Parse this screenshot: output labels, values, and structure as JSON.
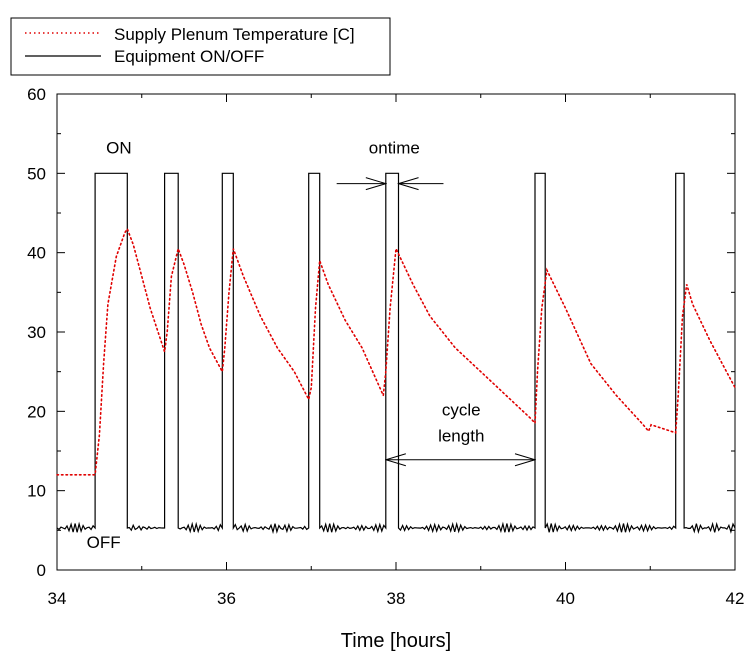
{
  "chart_data": {
    "type": "line",
    "title": "",
    "xlabel": "Time [hours]",
    "ylabel": "",
    "xlim": [
      34,
      42
    ],
    "ylim": [
      0,
      60
    ],
    "xticks": [
      34,
      36,
      38,
      40,
      42
    ],
    "yticks": [
      0,
      10,
      20,
      30,
      40,
      50,
      60
    ],
    "grid": false,
    "legend_position": "top-left-outside",
    "series": [
      {
        "name": "Supply Plenum Temperature [C]",
        "color": "#e00000",
        "style": "dotted",
        "x": [
          34.0,
          34.45,
          34.5,
          34.55,
          34.6,
          34.7,
          34.8,
          34.83,
          34.9,
          35.0,
          35.1,
          35.27,
          35.3,
          35.35,
          35.43,
          35.5,
          35.6,
          35.7,
          35.8,
          35.95,
          35.98,
          36.03,
          36.08,
          36.2,
          36.4,
          36.6,
          36.8,
          36.97,
          37.0,
          37.05,
          37.1,
          37.2,
          37.4,
          37.6,
          37.85,
          37.88,
          37.93,
          38.0,
          38.2,
          38.4,
          38.7,
          39.0,
          39.3,
          39.6,
          39.64,
          39.67,
          39.72,
          39.78,
          40.0,
          40.3,
          40.6,
          40.9,
          40.98,
          41.01,
          41.3,
          41.33,
          41.38,
          41.43,
          41.5,
          41.7,
          41.9,
          42.0
        ],
        "y": [
          12.0,
          12.0,
          17.0,
          26.0,
          33.5,
          39.5,
          42.5,
          43.0,
          41.0,
          37.0,
          33.0,
          27.5,
          30.0,
          37.0,
          40.5,
          38.5,
          35.0,
          31.0,
          28.0,
          25.0,
          28.0,
          35.0,
          40.5,
          37.0,
          32.0,
          28.0,
          25.0,
          21.5,
          23.0,
          33.0,
          39.0,
          36.0,
          31.5,
          28.0,
          22.0,
          25.0,
          33.0,
          40.5,
          36.0,
          32.0,
          28.0,
          25.0,
          22.0,
          19.0,
          18.5,
          25.0,
          33.0,
          37.8,
          33.0,
          26.0,
          22.0,
          18.5,
          17.5,
          18.3,
          17.3,
          22.0,
          32.0,
          36.0,
          33.5,
          29.0,
          25.0,
          23.0
        ]
      },
      {
        "name": "Equipment ON/OFF",
        "color": "#000000",
        "style": "solid",
        "low": 5.3,
        "high": 50,
        "on_intervals": [
          [
            34.45,
            34.83
          ],
          [
            35.27,
            35.43
          ],
          [
            35.95,
            36.08
          ],
          [
            36.97,
            37.1
          ],
          [
            37.88,
            38.03
          ],
          [
            39.64,
            39.76
          ],
          [
            41.3,
            41.4
          ]
        ],
        "x": [
          34.0,
          34.45,
          34.45,
          34.83,
          34.83,
          35.27,
          35.27,
          35.43,
          35.43,
          35.95,
          35.95,
          36.08,
          36.08,
          36.97,
          36.97,
          37.1,
          37.1,
          37.88,
          37.88,
          38.03,
          38.03,
          39.64,
          39.64,
          39.76,
          39.76,
          41.3,
          41.3,
          41.4,
          41.4,
          42.0
        ],
        "y": [
          5.3,
          5.3,
          50,
          50,
          5.3,
          5.3,
          50,
          50,
          5.3,
          5.3,
          50,
          50,
          5.3,
          5.3,
          50,
          50,
          5.3,
          5.3,
          50,
          50,
          5.3,
          5.3,
          50,
          50,
          5.3,
          5.3,
          50,
          50,
          5.3,
          5.3
        ]
      }
    ],
    "annotations": [
      {
        "id": "on",
        "text": "ON",
        "x": 34.73,
        "y": 52.5,
        "anchor": "middle"
      },
      {
        "id": "off",
        "text": "OFF",
        "x": 34.55,
        "y": 2.8,
        "anchor": "middle"
      },
      {
        "id": "ontime",
        "text": "ontime",
        "x": 37.98,
        "y": 52.5,
        "anchor": "middle"
      },
      {
        "id": "cycle1",
        "text": "cycle",
        "x": 38.77,
        "y": 19.5,
        "anchor": "middle"
      },
      {
        "id": "cycle2",
        "text": "length",
        "x": 38.77,
        "y": 16.2,
        "anchor": "middle"
      }
    ],
    "arrows": [
      {
        "id": "ontime-arrow-left",
        "x1": 37.3,
        "x2": 37.88,
        "y": 48.7
      },
      {
        "id": "ontime-arrow-right",
        "x1": 38.56,
        "x2": 38.03,
        "y": 48.7
      },
      {
        "id": "cycle-length-arrow",
        "x1": 37.88,
        "x2": 39.64,
        "y": 13.9,
        "double": true
      }
    ]
  }
}
